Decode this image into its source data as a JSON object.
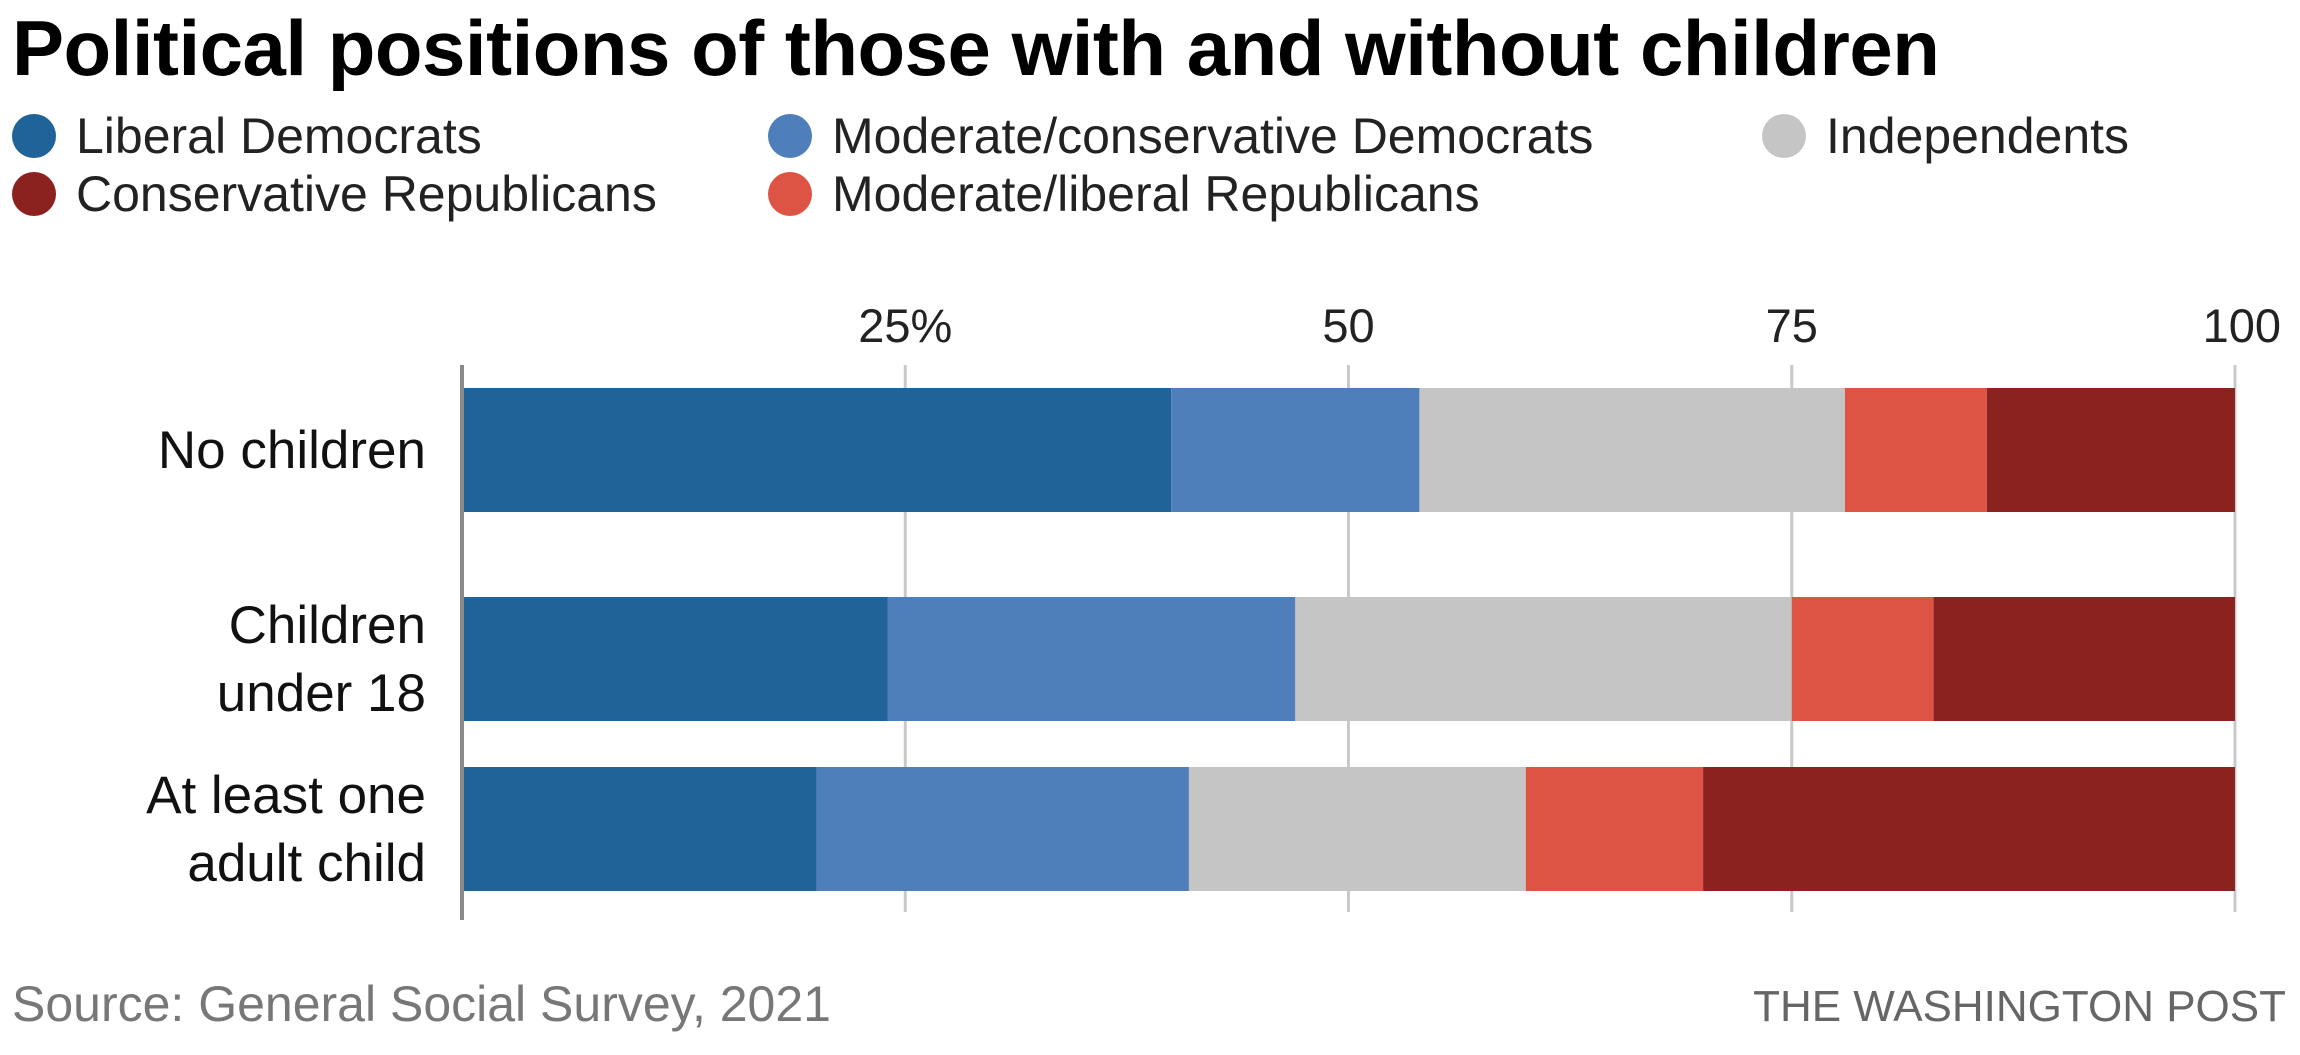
{
  "chart_data": {
    "type": "bar",
    "orientation": "horizontal",
    "stacked": true,
    "title": "Political positions of those with and without children",
    "categories": [
      "No children",
      "Children under 18",
      "At least one adult child"
    ],
    "category_lines": [
      [
        "No children"
      ],
      [
        "Children",
        "under 18"
      ],
      [
        "At least one",
        "adult child"
      ]
    ],
    "series": [
      {
        "name": "Liberal Democrats",
        "color": "#1f6399",
        "values": [
          40,
          24,
          20
        ]
      },
      {
        "name": "Moderate/conservative Democrats",
        "color": "#4e7fba",
        "values": [
          14,
          23,
          21
        ]
      },
      {
        "name": "Independents",
        "color": "#c5c5c5",
        "values": [
          24,
          28,
          19
        ]
      },
      {
        "name": "Moderate/liberal Republicans",
        "color": "#dd5444",
        "values": [
          8,
          8,
          10
        ]
      },
      {
        "name": "Conservative Republicans",
        "color": "#8c2220",
        "values": [
          14,
          17,
          30
        ]
      }
    ],
    "xlim": [
      0,
      100
    ],
    "x_ticks": [
      25,
      50,
      75,
      100
    ],
    "x_tick_labels": [
      "25%",
      "50",
      "75",
      "100"
    ],
    "xlabel": "",
    "ylabel": "",
    "grid": true,
    "legend_position": "top"
  },
  "legend_order": [
    0,
    1,
    2,
    4,
    3
  ],
  "source": "Source: General Social Survey, 2021",
  "credit": "THE WASHINGTON POST"
}
